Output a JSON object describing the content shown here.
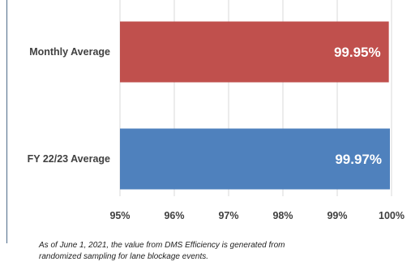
{
  "chart_data": {
    "type": "bar",
    "orientation": "horizontal",
    "categories": [
      "Monthly Average",
      "FY 22/23 Average"
    ],
    "values": [
      99.95,
      99.97
    ],
    "data_labels": [
      "99.95%",
      "99.97%"
    ],
    "colors": [
      "#c0504d",
      "#4f81bd"
    ],
    "xlim": [
      95,
      100
    ],
    "ticks": [
      95,
      96,
      97,
      98,
      99,
      100
    ],
    "tick_labels": [
      "95%",
      "96%",
      "97%",
      "98%",
      "99%",
      "100%"
    ],
    "grid": "vertical",
    "title": "",
    "xlabel": "",
    "ylabel": ""
  },
  "footnote": {
    "line1": "As of June 1, 2021, the value from DMS Efficiency is generated from",
    "line2": "randomized sampling for lane blockage events."
  }
}
